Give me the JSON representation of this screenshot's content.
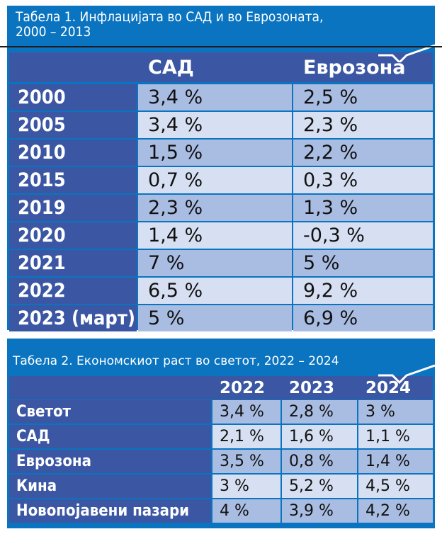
{
  "colors": {
    "band": "#0a74c0",
    "header": "#3b57a4",
    "row_dark": "#a9bde3",
    "row_light": "#d6e0f2"
  },
  "table1": {
    "title_line1": "Табела 1. Инфлацијата во САД и во Еврозоната,",
    "title_line2": "2000 – 2013",
    "columns": [
      "САД",
      "Еврозона"
    ],
    "rows": [
      {
        "label": "2000",
        "values": [
          "3,4 %",
          "2,5 %"
        ]
      },
      {
        "label": "2005",
        "values": [
          "3,4 %",
          "2,3 %"
        ]
      },
      {
        "label": "2010",
        "values": [
          "1,5 %",
          "2,2 %"
        ]
      },
      {
        "label": "2015",
        "values": [
          "0,7 %",
          "0,3 %"
        ]
      },
      {
        "label": "2019",
        "values": [
          "2,3 %",
          "1,3 %"
        ]
      },
      {
        "label": "2020",
        "values": [
          "1,4 %",
          "-0,3 %"
        ]
      },
      {
        "label": "2021",
        "values": [
          "7 %",
          "5 %"
        ]
      },
      {
        "label": "2022",
        "values": [
          "6,5 %",
          "9,2 %"
        ]
      },
      {
        "label": "2023 (март)",
        "values": [
          "5 %",
          "6,9 %"
        ]
      }
    ]
  },
  "table2": {
    "title": "Табела 2. Економскиот раст во светот, 2022 – 2024",
    "columns": [
      "2022",
      "2023",
      "2024"
    ],
    "rows": [
      {
        "label": "Светот",
        "values": [
          "3,4 %",
          "2,8 %",
          "3 %"
        ]
      },
      {
        "label": "САД",
        "values": [
          "2,1 %",
          "1,6 %",
          "1,1 %"
        ]
      },
      {
        "label": "Еврозона",
        "values": [
          "3,5 %",
          "0,8 %",
          "1,4 %"
        ]
      },
      {
        "label": "Кина",
        "values": [
          "3 %",
          "5,2 %",
          "4,5 %"
        ]
      },
      {
        "label": "Новопојавени пазари",
        "values": [
          "4 %",
          "3,9 %",
          "4,2 %"
        ]
      }
    ]
  }
}
